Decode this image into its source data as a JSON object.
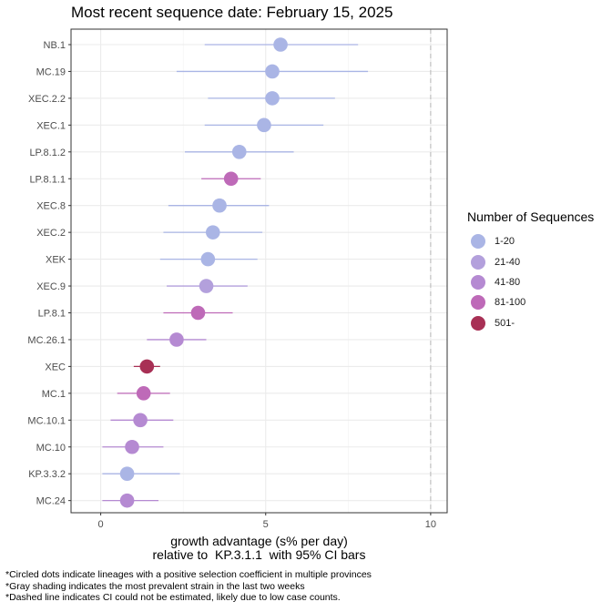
{
  "chart_data": {
    "type": "scatter",
    "title": "Most recent sequence date: February 15, 2025",
    "xlabel_lines": [
      "growth advantage (s% per day)",
      "relative to  KP.3.1.1  with 95% CI bars"
    ],
    "xlim": [
      -0.9,
      10.5
    ],
    "x_ticks": [
      0,
      5,
      10
    ],
    "x_tick_labels": [
      "0",
      "5",
      "10"
    ],
    "reference_line_x": 10,
    "grid": true,
    "legend_position": "right",
    "legend": {
      "title": "Number of Sequences",
      "entries": [
        {
          "label": "1-20",
          "color": "#aab5e5"
        },
        {
          "label": "21-40",
          "color": "#b3a0dc"
        },
        {
          "label": "41-80",
          "color": "#b58ad2"
        },
        {
          "label": "81-100",
          "color": "#be6ab8"
        },
        {
          "label": "501-",
          "color": "#a83055"
        }
      ]
    },
    "lineages": [
      {
        "label": "NB.1",
        "value": 5.45,
        "ci": [
          3.15,
          7.8
        ],
        "group": "1-20"
      },
      {
        "label": "MC.19",
        "value": 5.2,
        "ci": [
          2.3,
          8.1
        ],
        "group": "1-20"
      },
      {
        "label": "XEC.2.2",
        "value": 5.2,
        "ci": [
          3.25,
          7.1
        ],
        "group": "1-20"
      },
      {
        "label": "XEC.1",
        "value": 4.95,
        "ci": [
          3.15,
          6.75
        ],
        "group": "1-20"
      },
      {
        "label": "LP.8.1.2",
        "value": 4.2,
        "ci": [
          2.55,
          5.85
        ],
        "group": "1-20"
      },
      {
        "label": "LP.8.1.1",
        "value": 3.95,
        "ci": [
          3.05,
          4.85
        ],
        "group": "81-100"
      },
      {
        "label": "XEC.8",
        "value": 3.6,
        "ci": [
          2.05,
          5.1
        ],
        "group": "1-20"
      },
      {
        "label": "XEC.2",
        "value": 3.4,
        "ci": [
          1.9,
          4.9
        ],
        "group": "1-20"
      },
      {
        "label": "XEK",
        "value": 3.25,
        "ci": [
          1.8,
          4.75
        ],
        "group": "1-20"
      },
      {
        "label": "XEC.9",
        "value": 3.2,
        "ci": [
          2.0,
          4.45
        ],
        "group": "21-40"
      },
      {
        "label": "LP.8.1",
        "value": 2.95,
        "ci": [
          1.9,
          4.0
        ],
        "group": "81-100"
      },
      {
        "label": "MC.26.1",
        "value": 2.3,
        "ci": [
          1.4,
          3.2
        ],
        "group": "41-80"
      },
      {
        "label": "XEC",
        "value": 1.4,
        "ci": [
          1.0,
          1.8
        ],
        "group": "501-"
      },
      {
        "label": "MC.1",
        "value": 1.3,
        "ci": [
          0.5,
          2.1
        ],
        "group": "81-100"
      },
      {
        "label": "MC.10.1",
        "value": 1.2,
        "ci": [
          0.3,
          2.2
        ],
        "group": "41-80"
      },
      {
        "label": "MC.10",
        "value": 0.95,
        "ci": [
          0.05,
          1.9
        ],
        "group": "41-80"
      },
      {
        "label": "KP.3.3.2",
        "value": 0.8,
        "ci": [
          0.05,
          2.4
        ],
        "group": "1-20"
      },
      {
        "label": "MC.24",
        "value": 0.8,
        "ci": [
          0.05,
          1.75
        ],
        "group": "41-80"
      }
    ]
  },
  "footnotes": [
    "*Circled dots indicate lineages with a positive selection coefficient in multiple provinces",
    "*Gray shading indicates the most prevalent strain in the last two weeks",
    "*Dashed line indicates CI could not be estimated, likely due to low case counts."
  ]
}
